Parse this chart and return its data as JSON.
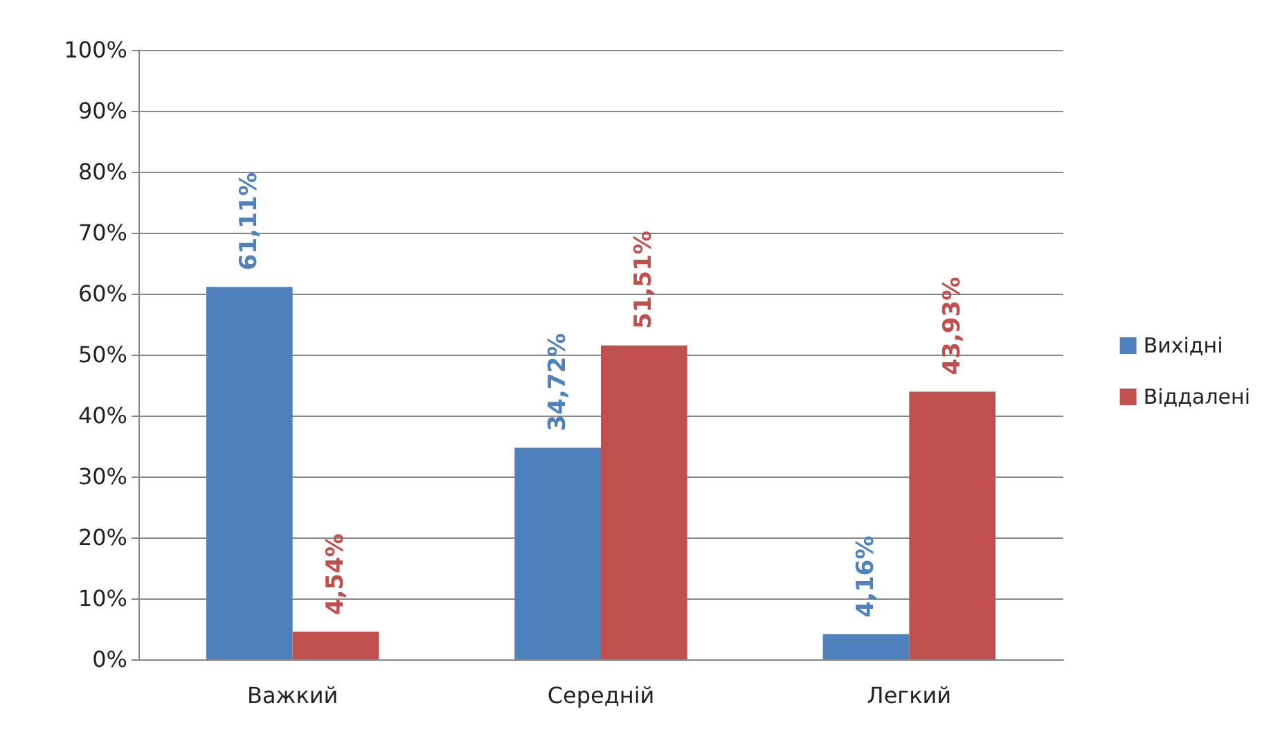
{
  "chart_data": {
    "type": "bar",
    "categories": [
      "Важкий",
      "Середній",
      "Легкий"
    ],
    "series": [
      {
        "name": "Вихідні",
        "color": "#4f81bd",
        "values": [
          61.11,
          34.72,
          4.16
        ],
        "value_labels": [
          "61,11%",
          "34,72%",
          "4,16%"
        ]
      },
      {
        "name": "Віддалені",
        "color": "#c0504d",
        "values": [
          4.54,
          51.51,
          43.93
        ],
        "value_labels": [
          "4,54%",
          "51,51%",
          "43,93%"
        ]
      }
    ],
    "ylim": [
      0,
      100
    ],
    "yticks": [
      {
        "value": 0,
        "label": "0%"
      },
      {
        "value": 10,
        "label": "10%"
      },
      {
        "value": 20,
        "label": "20%"
      },
      {
        "value": 30,
        "label": "30%"
      },
      {
        "value": 40,
        "label": "40%"
      },
      {
        "value": 50,
        "label": "50%"
      },
      {
        "value": 60,
        "label": "60%"
      },
      {
        "value": 70,
        "label": "70%"
      },
      {
        "value": 80,
        "label": "80%"
      },
      {
        "value": 90,
        "label": "90%"
      },
      {
        "value": 100,
        "label": "100%"
      }
    ],
    "grid": "y",
    "legend": "right"
  }
}
